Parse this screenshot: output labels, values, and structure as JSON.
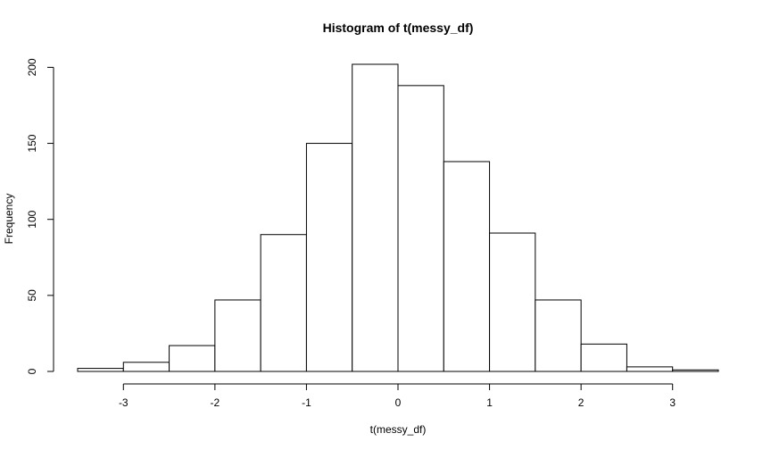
{
  "chart_data": {
    "type": "histogram",
    "title": "Histogram of t(messy_df)",
    "xlabel": "t(messy_df)",
    "ylabel": "Frequency",
    "bins": [
      {
        "x0": -3.5,
        "x1": -3.0,
        "count": 2
      },
      {
        "x0": -3.0,
        "x1": -2.5,
        "count": 6
      },
      {
        "x0": -2.5,
        "x1": -2.0,
        "count": 17
      },
      {
        "x0": -2.0,
        "x1": -1.5,
        "count": 47
      },
      {
        "x0": -1.5,
        "x1": -1.0,
        "count": 90
      },
      {
        "x0": -1.0,
        "x1": -0.5,
        "count": 150
      },
      {
        "x0": -0.5,
        "x1": 0.0,
        "count": 202
      },
      {
        "x0": 0.0,
        "x1": 0.5,
        "count": 188
      },
      {
        "x0": 0.5,
        "x1": 1.0,
        "count": 138
      },
      {
        "x0": 1.0,
        "x1": 1.5,
        "count": 91
      },
      {
        "x0": 1.5,
        "x1": 2.0,
        "count": 47
      },
      {
        "x0": 2.0,
        "x1": 2.5,
        "count": 18
      },
      {
        "x0": 2.5,
        "x1": 3.0,
        "count": 3
      },
      {
        "x0": 3.0,
        "x1": 3.5,
        "count": 1
      }
    ],
    "xticks": [
      -3,
      -2,
      -1,
      0,
      1,
      2,
      3
    ],
    "xtick_labels": [
      "-3",
      "-2",
      "-1",
      "0",
      "1",
      "2",
      "3"
    ],
    "yticks": [
      0,
      50,
      100,
      150,
      200
    ],
    "ytick_labels": [
      "0",
      "50",
      "100",
      "150",
      "200"
    ],
    "xlim": [
      -3.5,
      3.5
    ],
    "ylim": [
      0,
      202
    ],
    "grid": false
  }
}
